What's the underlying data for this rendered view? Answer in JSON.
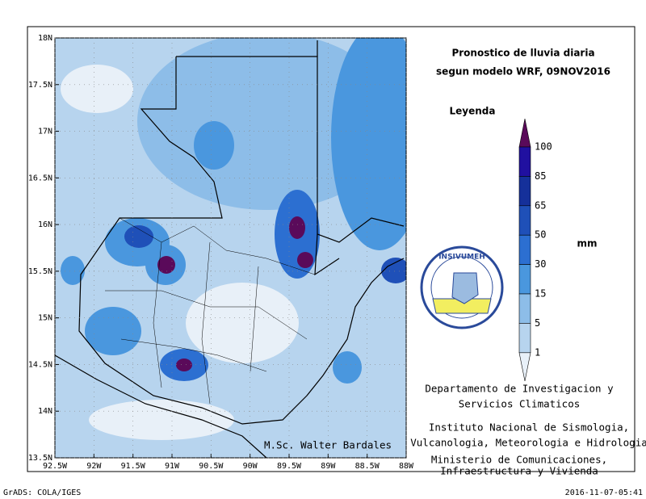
{
  "title": {
    "line1": "Pronostico de lluvia diaria",
    "line2": "segun modelo WRF,  09NOV2016"
  },
  "map": {
    "lat_labels": [
      "18N",
      "17.5N",
      "17N",
      "16.5N",
      "16N",
      "15.5N",
      "15N",
      "14.5N",
      "14N",
      "13.5N"
    ],
    "lon_labels": [
      "92.5W",
      "92W",
      "91.5W",
      "91W",
      "90.5W",
      "90W",
      "89.5W",
      "89W",
      "88.5W",
      "88W"
    ],
    "author": "M.Sc. Walter Bardales"
  },
  "legend": {
    "title": "Leyenda",
    "levels": [
      "100",
      "85",
      "65",
      "50",
      "30",
      "15",
      "5",
      "1"
    ],
    "unit": "mm"
  },
  "logo": {
    "name": "INSIVUMEH"
  },
  "credits": [
    "Departamento de Investigacion y",
    "Servicios Climaticos",
    "Instituto Nacional de Sismologia,",
    "Vulcanologia, Meteorologia e Hidrologia",
    "Ministerio de Comunicaciones,",
    "Infraestructura y Vivienda"
  ],
  "footer": {
    "left": "GrADS: COLA/IGES",
    "right": "2016-11-07-05:41"
  }
}
